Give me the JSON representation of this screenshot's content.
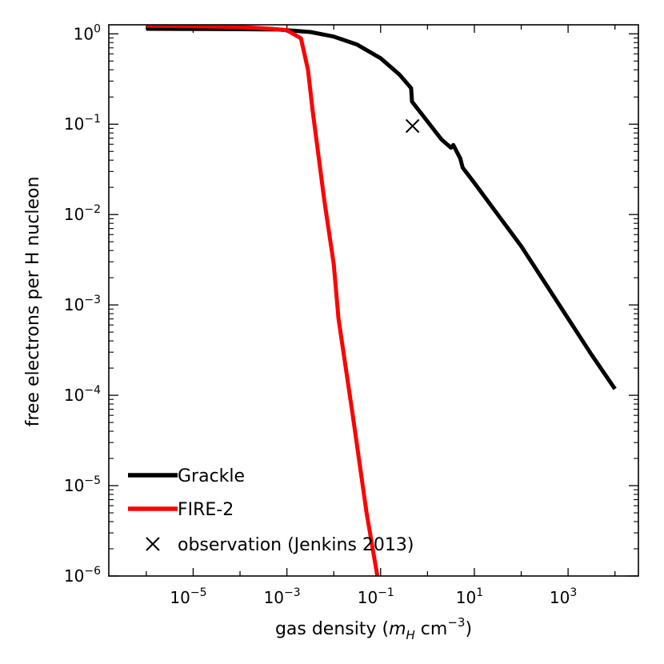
{
  "chart_data": {
    "type": "line",
    "xscale": "log",
    "yscale": "log",
    "xlim_exp": [
      -6.8,
      4.5
    ],
    "ylim_exp": [
      -6,
      0.1
    ],
    "xlabel_prefix": "gas density (",
    "xlabel_m": "m",
    "xlabel_sub": "H",
    "xlabel_unit": " cm",
    "xlabel_exp": "−3",
    "xlabel_suffix": ")",
    "ylabel": "free electrons per H nucleon",
    "xticks": [
      {
        "base": "10",
        "exp": "−5",
        "value_exp": -5
      },
      {
        "base": "10",
        "exp": "−3",
        "value_exp": -3
      },
      {
        "base": "10",
        "exp": "−1",
        "value_exp": -1
      },
      {
        "base": "10",
        "exp": "1",
        "value_exp": 1
      },
      {
        "base": "10",
        "exp": "3",
        "value_exp": 3
      }
    ],
    "yticks": [
      {
        "base": "10",
        "exp": "0",
        "value_exp": 0
      },
      {
        "base": "10",
        "exp": "−1",
        "value_exp": -1
      },
      {
        "base": "10",
        "exp": "−2",
        "value_exp": -2
      },
      {
        "base": "10",
        "exp": "−3",
        "value_exp": -3
      },
      {
        "base": "10",
        "exp": "−4",
        "value_exp": -4
      },
      {
        "base": "10",
        "exp": "−5",
        "value_exp": -5
      },
      {
        "base": "10",
        "exp": "−6",
        "value_exp": -6
      }
    ],
    "series": [
      {
        "name": "Grackle",
        "color": "#000000",
        "points_log": [
          [
            -6.0,
            0.056
          ],
          [
            -5.0,
            0.054
          ],
          [
            -4.0,
            0.051
          ],
          [
            -3.2,
            0.048
          ],
          [
            -3.0,
            0.04
          ],
          [
            -2.5,
            0.02
          ],
          [
            -2.0,
            -0.03
          ],
          [
            -1.5,
            -0.12
          ],
          [
            -1.0,
            -0.27
          ],
          [
            -0.6,
            -0.45
          ],
          [
            -0.35,
            -0.6
          ],
          [
            -0.33,
            -0.75
          ],
          [
            0.0,
            -0.97
          ],
          [
            0.3,
            -1.17
          ],
          [
            0.5,
            -1.26
          ],
          [
            0.55,
            -1.23
          ],
          [
            0.7,
            -1.38
          ],
          [
            0.75,
            -1.48
          ],
          [
            1.0,
            -1.65
          ],
          [
            1.5,
            -2.0
          ],
          [
            2.0,
            -2.35
          ],
          [
            2.5,
            -2.75
          ],
          [
            3.0,
            -3.15
          ],
          [
            3.5,
            -3.55
          ],
          [
            4.0,
            -3.93
          ]
        ]
      },
      {
        "name": "FIRE-2",
        "color": "#ff0000",
        "points_log": [
          [
            -6.0,
            0.09
          ],
          [
            -5.0,
            0.085
          ],
          [
            -4.0,
            0.075
          ],
          [
            -3.3,
            0.055
          ],
          [
            -3.0,
            0.04
          ],
          [
            -2.7,
            -0.05
          ],
          [
            -2.55,
            -0.4
          ],
          [
            -2.45,
            -0.85
          ],
          [
            -2.3,
            -1.45
          ],
          [
            -2.2,
            -1.85
          ],
          [
            -2.0,
            -2.55
          ],
          [
            -1.9,
            -3.15
          ],
          [
            -1.6,
            -4.2
          ],
          [
            -1.3,
            -5.3
          ],
          [
            -1.07,
            -6.0
          ]
        ]
      }
    ],
    "observations": [
      {
        "name": "observation (Jenkins 2013)",
        "x_exp": -0.32,
        "y_exp": -1.02
      }
    ],
    "legend": {
      "position": "lower-left",
      "entries": [
        {
          "label": "Grackle",
          "kind": "line",
          "color": "#000000"
        },
        {
          "label": "FIRE-2",
          "kind": "line",
          "color": "#ff0000"
        },
        {
          "label": "observation (Jenkins 2013)",
          "kind": "marker-x",
          "color": "#000000"
        }
      ]
    }
  }
}
